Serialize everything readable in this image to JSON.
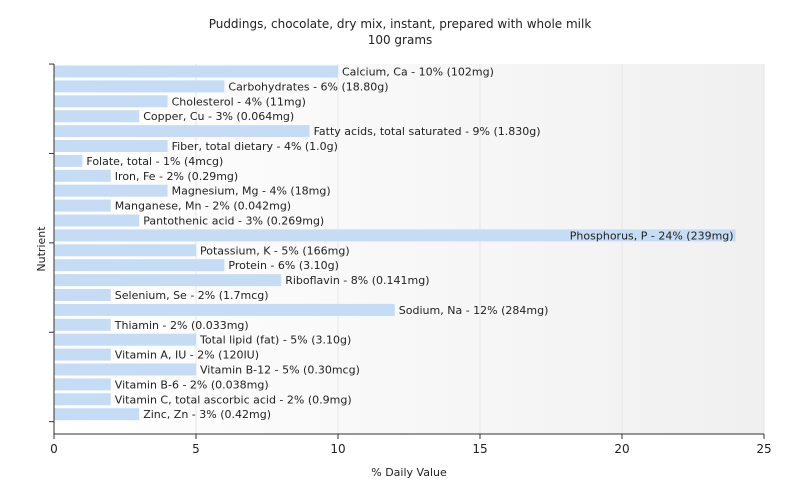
{
  "chart_data": {
    "type": "bar",
    "orientation": "horizontal",
    "title": "Puddings, chocolate, dry mix, instant, prepared with whole milk",
    "subtitle": "100 grams",
    "xlabel": "% Daily Value",
    "ylabel": "Nutrient",
    "xlim": [
      0,
      25
    ],
    "xticks": [
      0,
      5,
      10,
      15,
      20,
      25
    ],
    "grid": true,
    "bar_color": "#c6dcf5",
    "categories": [
      "Calcium, Ca",
      "Carbohydrates",
      "Cholesterol",
      "Copper, Cu",
      "Fatty acids, total saturated",
      "Fiber, total dietary",
      "Folate, total",
      "Iron, Fe",
      "Magnesium, Mg",
      "Manganese, Mn",
      "Pantothenic acid",
      "Phosphorus, P",
      "Potassium, K",
      "Protein",
      "Riboflavin",
      "Selenium, Se",
      "Sodium, Na",
      "Thiamin",
      "Total lipid (fat)",
      "Vitamin A, IU",
      "Vitamin B-12",
      "Vitamin B-6",
      "Vitamin C, total ascorbic acid",
      "Zinc, Zn"
    ],
    "values": [
      10,
      6,
      4,
      3,
      9,
      4,
      1,
      2,
      4,
      2,
      3,
      24,
      5,
      6,
      8,
      2,
      12,
      2,
      5,
      2,
      5,
      2,
      2,
      3
    ],
    "labels": [
      "Calcium, Ca - 10% (102mg)",
      "Carbohydrates - 6% (18.80g)",
      "Cholesterol - 4% (11mg)",
      "Copper, Cu - 3% (0.064mg)",
      "Fatty acids, total saturated - 9% (1.830g)",
      "Fiber, total dietary - 4% (1.0g)",
      "Folate, total - 1% (4mcg)",
      "Iron, Fe - 2% (0.29mg)",
      "Magnesium, Mg - 4% (18mg)",
      "Manganese, Mn - 2% (0.042mg)",
      "Pantothenic acid - 3% (0.269mg)",
      "Phosphorus, P - 24% (239mg)",
      "Potassium, K - 5% (166mg)",
      "Protein - 6% (3.10g)",
      "Riboflavin - 8% (0.141mg)",
      "Selenium, Se - 2% (1.7mcg)",
      "Sodium, Na - 12% (284mg)",
      "Thiamin - 2% (0.033mg)",
      "Total lipid (fat) - 5% (3.10g)",
      "Vitamin A, IU - 2% (120IU)",
      "Vitamin B-12 - 5% (0.30mcg)",
      "Vitamin B-6 - 2% (0.038mg)",
      "Vitamin C, total ascorbic acid - 2% (0.9mg)",
      "Zinc, Zn - 3% (0.42mg)"
    ]
  }
}
